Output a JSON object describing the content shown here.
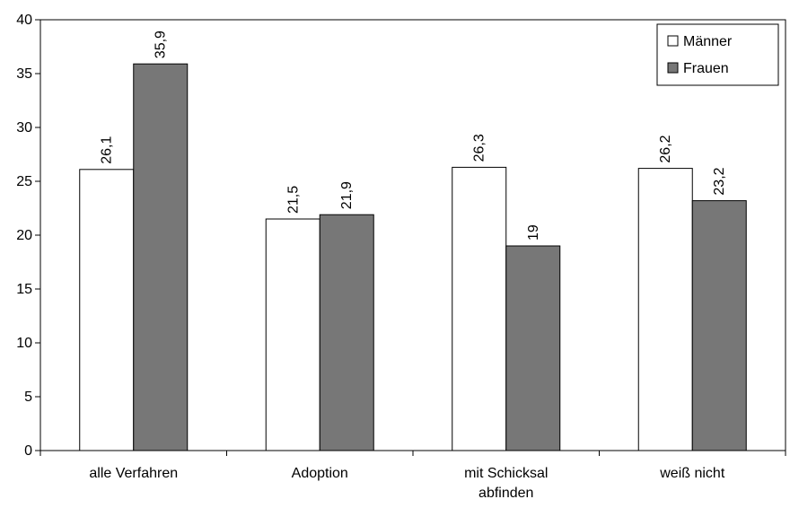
{
  "chart_data": {
    "type": "bar",
    "categories": [
      [
        "alle Verfahren"
      ],
      [
        "Adoption"
      ],
      [
        "mit Schicksal",
        "abfinden"
      ],
      [
        "weiß nicht"
      ]
    ],
    "series": [
      {
        "name": "Männer",
        "color": "#ffffff",
        "values": [
          26.1,
          21.5,
          26.3,
          26.2
        ],
        "labels": [
          "26,1",
          "21,5",
          "26,3",
          "26,2"
        ]
      },
      {
        "name": "Frauen",
        "color": "#777777",
        "values": [
          35.9,
          21.9,
          19,
          23.2
        ],
        "labels": [
          "35,9",
          "21,9",
          "19",
          "23,2"
        ]
      }
    ],
    "title": "",
    "xlabel": "",
    "ylabel": "",
    "ylim": [
      0,
      40
    ],
    "yticks": [
      0,
      5,
      10,
      15,
      20,
      25,
      30,
      35,
      40
    ],
    "grid": false,
    "legend_position": "top-right"
  }
}
